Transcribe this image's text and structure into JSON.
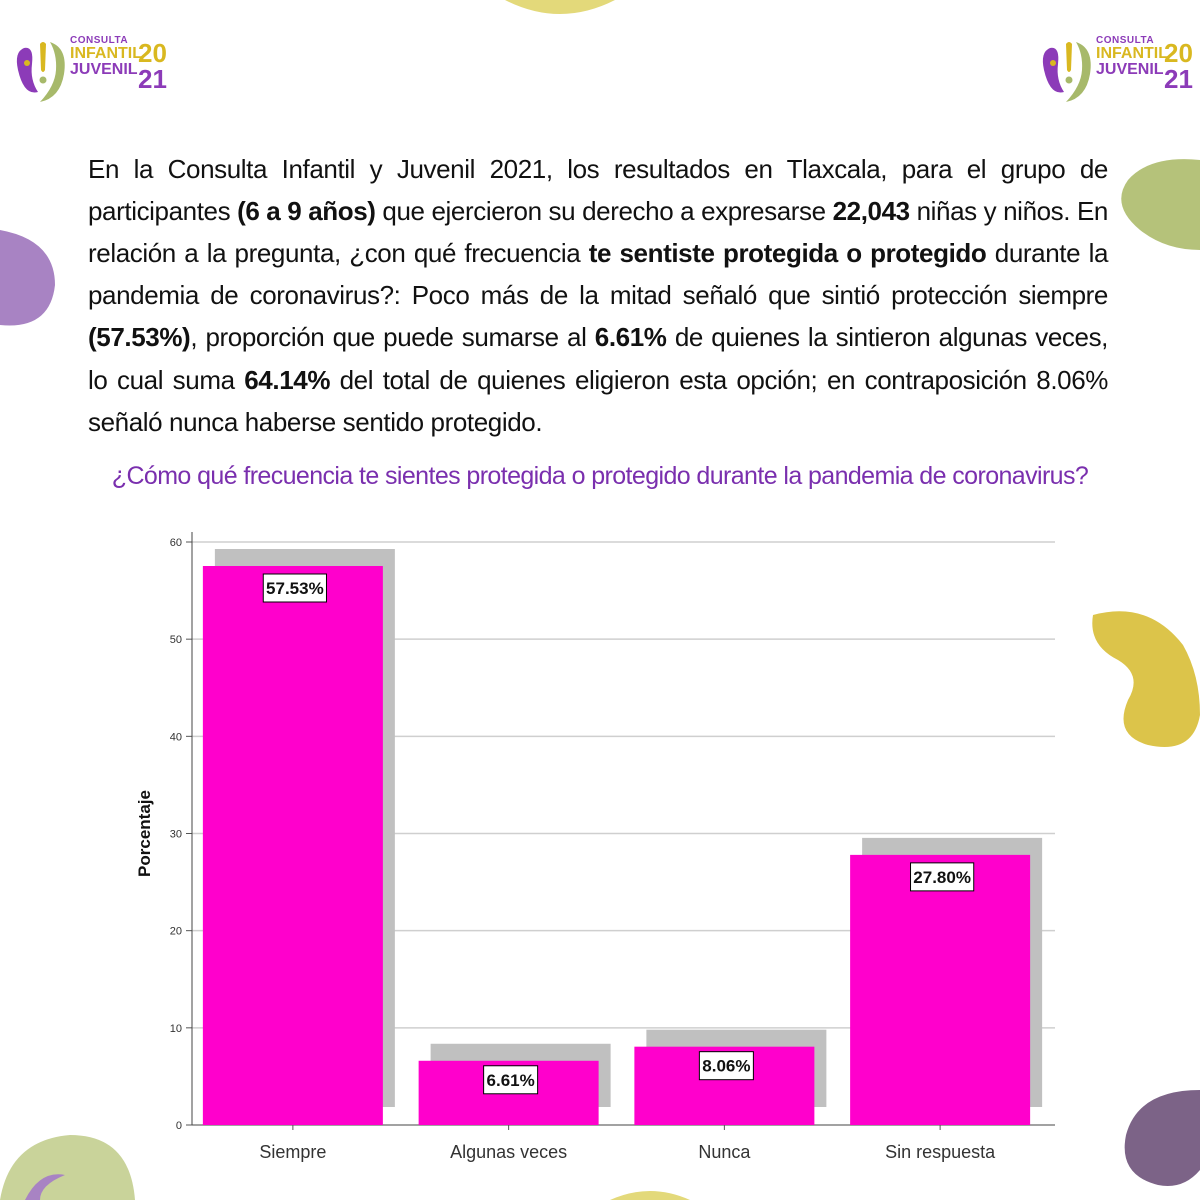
{
  "logo": {
    "line1": "CONSULTA",
    "line2": "INFANTIL",
    "line3": "JUVENIL",
    "year_top": "20",
    "year_bottom": "21",
    "colors": {
      "purple": "#8c3bb8",
      "yellow": "#d9b820",
      "green": "#a7b96a"
    }
  },
  "paragraph": {
    "p1": "En la Consulta Infantil y Juvenil 2021, los resultados en Tlaxcala, para el  grupo de participantes ",
    "b1": "(6 a 9 años)",
    "p2": " que ejercieron su derecho a expresarse ",
    "b2": "22,043",
    "p3": " niñas y niños. En relación a la pregunta, ¿con qué frecuencia ",
    "b3": "te sentiste protegida o protegido",
    "p4": " durante la pandemia de coronavirus?: Poco más de la mitad señaló que sintió protección siempre ",
    "b4": "(57.53%)",
    "p5": ", proporción que puede sumarse al ",
    "b5": "6.61%",
    "p6": " de quienes la sintieron algunas veces, lo cual suma ",
    "b6": "64.14%",
    "p7": " del total de quienes eligieron esta opción; en contraposición 8.06% señaló nunca haberse sentido protegido."
  },
  "question": "¿Cómo qué frecuencia te sientes protegida o protegido durante la pandemia de coronavirus?",
  "chart_data": {
    "type": "bar",
    "categories": [
      "Siempre",
      "Algunas veces",
      "Nunca",
      "Sin respuesta"
    ],
    "values": [
      57.53,
      6.61,
      8.06,
      27.8
    ],
    "data_labels": [
      "57.53%",
      "6.61%",
      "8.06%",
      "27.80%"
    ],
    "ylabel": "Porcentaje",
    "xlabel": "",
    "ylim": [
      0,
      60
    ],
    "yticks": [
      0,
      10,
      20,
      30,
      40,
      50,
      60
    ],
    "grid": true,
    "bar_color": "#ff00cc",
    "shadow_color": "#c0c0c0"
  }
}
